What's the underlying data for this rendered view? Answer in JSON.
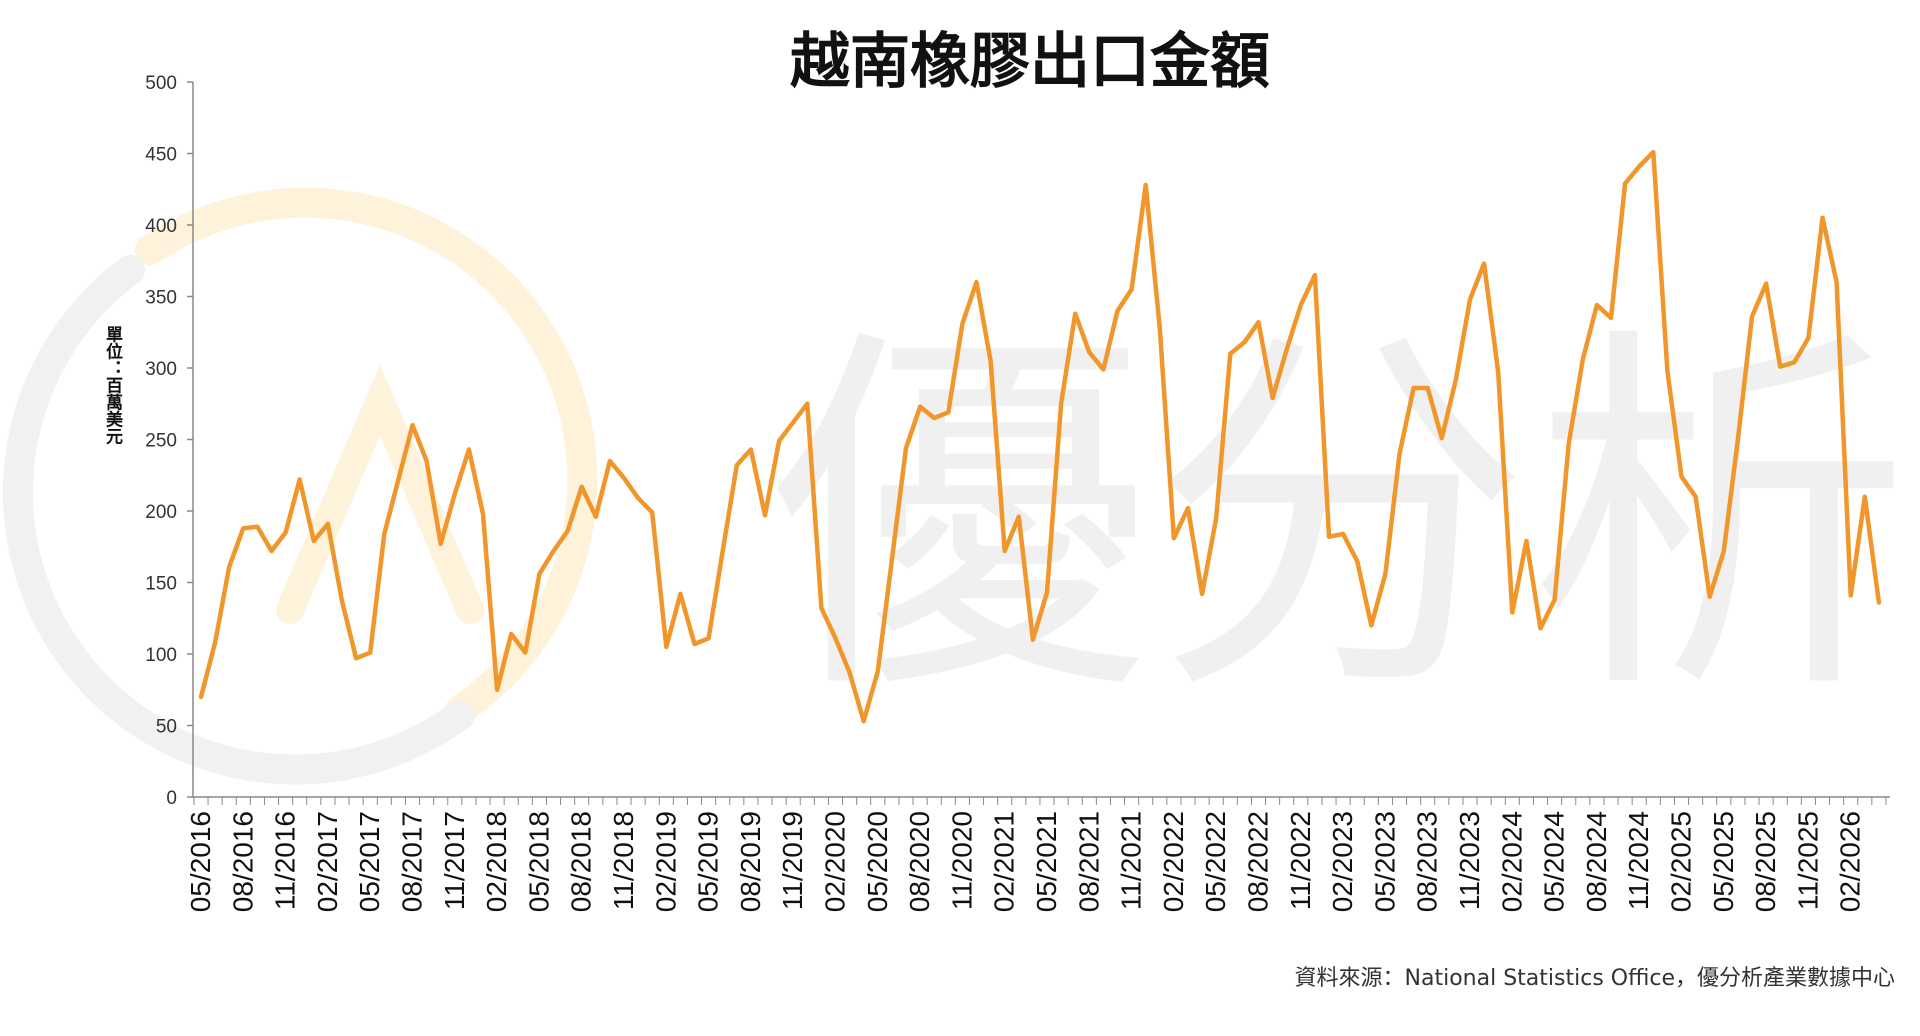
{
  "chart_data": {
    "type": "line",
    "title": "越南橡膠出口金額",
    "ylabel": "單位：百萬美元",
    "source": "資料來源：National Statistics Office，優分析產業數據中心",
    "watermark_text": "優分析",
    "ylim": [
      0,
      500
    ],
    "yticks": [
      0,
      50,
      100,
      150,
      200,
      250,
      300,
      350,
      400,
      450,
      500
    ],
    "grid": false,
    "line_color": "#f0962a",
    "xtick_labels": [
      "05/2016",
      "08/2016",
      "11/2016",
      "02/2017",
      "05/2017",
      "08/2017",
      "11/2017",
      "02/2018",
      "05/2018",
      "08/2018",
      "11/2018",
      "02/2019",
      "05/2019",
      "08/2019",
      "11/2019",
      "02/2020",
      "05/2020",
      "08/2020",
      "11/2020",
      "02/2021",
      "05/2021",
      "08/2021",
      "11/2021",
      "02/2022",
      "05/2022",
      "08/2022",
      "11/2022",
      "02/2023",
      "05/2023",
      "08/2023",
      "11/2023",
      "02/2024",
      "05/2024",
      "08/2024",
      "11/2024",
      "02/2025",
      "05/2025",
      "08/2025",
      "11/2025",
      "02/2026"
    ],
    "series": [
      {
        "values": [
          70,
          108,
          161,
          188,
          189,
          172,
          185,
          222,
          179,
          191,
          137,
          97,
          101,
          184,
          222,
          260,
          235,
          177,
          212,
          243,
          198,
          75,
          114,
          101,
          156,
          172,
          186,
          217,
          196,
          235,
          223,
          209,
          199,
          105,
          142,
          107,
          111,
          172,
          232,
          243,
          197,
          249,
          262,
          275,
          132,
          111,
          87,
          53,
          88,
          166,
          244,
          273,
          265,
          269,
          331,
          360,
          305,
          172,
          196,
          110,
          143,
          275,
          338,
          311,
          299,
          340,
          355,
          428,
          328,
          181,
          202,
          142,
          195,
          310,
          318,
          332,
          279,
          313,
          344,
          365,
          182,
          184,
          165,
          120,
          156,
          240,
          286,
          286,
          251,
          292,
          348,
          373,
          297,
          129,
          179,
          118,
          138,
          247,
          306,
          344,
          335,
          429,
          441,
          451,
          298,
          224,
          210,
          140,
          172,
          250,
          336,
          359,
          301,
          304,
          321,
          405,
          360,
          141,
          210,
          136
        ]
      }
    ]
  }
}
